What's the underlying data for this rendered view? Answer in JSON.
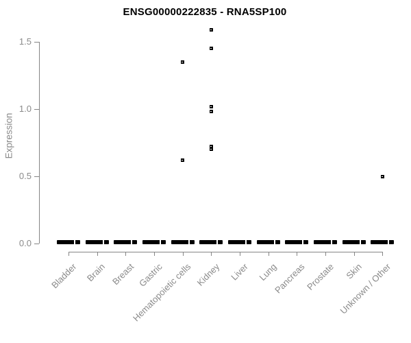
{
  "title": "ENSG00000222835 - RNA5SP100",
  "colors": {
    "background": "#ffffff",
    "title": "#000000",
    "axis": "#858585",
    "axis_text": "#8a8a8a",
    "points": "#000000"
  },
  "chart_data": {
    "type": "scatter",
    "subtype": "strip-plot-by-category",
    "title": "ENSG00000222835 - RNA5SP100",
    "xlabel": "",
    "ylabel": "Expression",
    "ylim": [
      0.0,
      1.65
    ],
    "ytick_labels": [
      "0.0",
      "0.5",
      "1.0",
      "1.5"
    ],
    "grid": false,
    "legend": false,
    "marker": "small black square (open-square glyph)",
    "categories": [
      "Bladder",
      "Brain",
      "Breast",
      "Gastric",
      "Hematopoietic cells",
      "Kidney",
      "Liver",
      "Lung",
      "Pancreas",
      "Prostate",
      "Skin",
      "Unknown / Other"
    ],
    "zero_clusters": {
      "value": 0.0,
      "note": "every category shows a dense horizontal cluster of samples at expression 0.0, rendered as a thick black dash",
      "categories": [
        "Bladder",
        "Brain",
        "Breast",
        "Gastric",
        "Hematopoietic cells",
        "Kidney",
        "Liver",
        "Lung",
        "Pancreas",
        "Prostate",
        "Skin",
        "Unknown / Other"
      ]
    },
    "points": [
      {
        "category": "Hematopoietic cells",
        "value": 1.35
      },
      {
        "category": "Hematopoietic cells",
        "value": 0.62
      },
      {
        "category": "Kidney",
        "value": 1.59
      },
      {
        "category": "Kidney",
        "value": 1.45
      },
      {
        "category": "Kidney",
        "value": 1.02
      },
      {
        "category": "Kidney",
        "value": 0.98
      },
      {
        "category": "Kidney",
        "value": 0.72
      },
      {
        "category": "Kidney",
        "value": 0.7
      },
      {
        "category": "Unknown / Other",
        "value": 0.5
      }
    ]
  }
}
